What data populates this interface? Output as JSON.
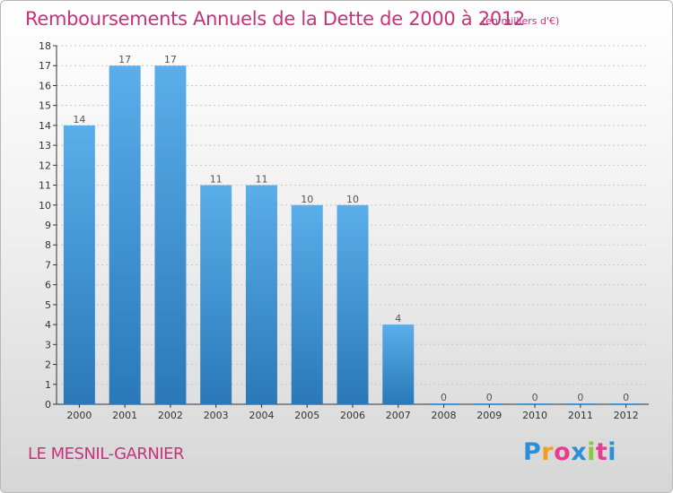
{
  "header": {
    "title": "Remboursements Annuels de la Dette de 2000 à 2012",
    "unit": "(en milliers d'€)"
  },
  "footer": {
    "commune": "LE MESNIL-GARNIER",
    "logo_text": [
      "P",
      "r",
      "o",
      "x",
      "i",
      "t",
      "i"
    ],
    "logo_colors": [
      "#2a8fd6",
      "#f0a020",
      "#e83c8c",
      "#2a8fd6",
      "#8cc83c",
      "#e83c8c",
      "#2a8fd6"
    ]
  },
  "colors": {
    "bar_light": "#5aaeea",
    "bar_dark": "#2a78b8",
    "axis": "#333333",
    "grid": "#c8c8c8"
  },
  "chart_data": {
    "type": "bar",
    "title": "Remboursements Annuels de la Dette de 2000 à 2012",
    "categories": [
      "2000",
      "2001",
      "2002",
      "2003",
      "2004",
      "2005",
      "2006",
      "2007",
      "2008",
      "2009",
      "2010",
      "2011",
      "2012"
    ],
    "values": [
      14,
      17,
      17,
      11,
      11,
      10,
      10,
      4,
      0,
      0,
      0,
      0,
      0
    ],
    "y_ticks": [
      0,
      1,
      2,
      3,
      4,
      5,
      6,
      7,
      8,
      9,
      10,
      11,
      12,
      13,
      14,
      15,
      16,
      17,
      18
    ],
    "ylim": [
      0,
      18
    ],
    "grid": true,
    "legend": "none"
  }
}
